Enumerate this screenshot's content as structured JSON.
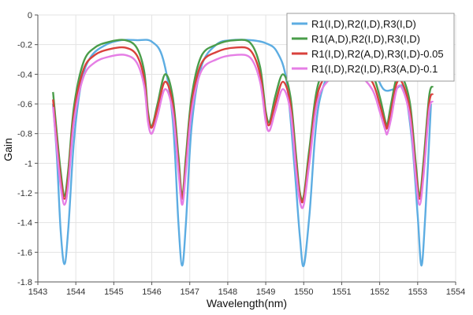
{
  "chart_data": {
    "type": "line",
    "title": "",
    "xlabel": "Wavelength(nm)",
    "ylabel": "Gain",
    "xlim": [
      1543,
      1554
    ],
    "ylim": [
      -1.8,
      0
    ],
    "xticks": [
      1543,
      1544,
      1545,
      1546,
      1547,
      1548,
      1549,
      1550,
      1551,
      1552,
      1553,
      1554
    ],
    "yticks": [
      0,
      -0.2,
      -0.4,
      -0.6,
      -0.8,
      -1,
      -1.2,
      -1.4,
      -1.6,
      -1.8
    ],
    "grid": true,
    "legend_position": "top-right",
    "series": [
      {
        "name": "R1(I,D),R2(I,D),R3(I,D)",
        "color": "#5dade2",
        "x": [
          1543.4,
          1543.5,
          1543.6,
          1543.7,
          1543.8,
          1543.95,
          1544.15,
          1544.4,
          1544.8,
          1545.2,
          1545.6,
          1546.0,
          1546.3,
          1546.55,
          1546.7,
          1546.8,
          1546.9,
          1547.05,
          1547.3,
          1547.7,
          1548.1,
          1548.6,
          1549.0,
          1549.3,
          1549.55,
          1549.75,
          1549.9,
          1550.0,
          1550.15,
          1550.4,
          1550.9,
          1551.4,
          1551.8,
          1552.1,
          1552.4,
          1552.65,
          1552.85,
          1553.0,
          1553.1,
          1553.2,
          1553.35
        ],
        "y": [
          -0.6,
          -0.95,
          -1.45,
          -1.68,
          -1.45,
          -0.85,
          -0.45,
          -0.28,
          -0.2,
          -0.17,
          -0.17,
          -0.18,
          -0.3,
          -0.7,
          -1.4,
          -1.69,
          -1.4,
          -0.75,
          -0.35,
          -0.2,
          -0.17,
          -0.17,
          -0.19,
          -0.25,
          -0.45,
          -1.0,
          -1.5,
          -1.69,
          -1.35,
          -0.6,
          -0.3,
          -0.25,
          -0.35,
          -0.5,
          -0.5,
          -0.5,
          -0.85,
          -1.35,
          -1.69,
          -1.35,
          -0.6
        ]
      },
      {
        "name": "R1(A,D),R2(I,D),R3(I,D)",
        "color": "#4a9d4a",
        "x": [
          1543.4,
          1543.5,
          1543.6,
          1543.7,
          1543.8,
          1543.95,
          1544.2,
          1544.5,
          1544.9,
          1545.3,
          1545.6,
          1545.8,
          1545.9,
          1546.0,
          1546.15,
          1546.35,
          1546.55,
          1546.7,
          1546.8,
          1546.9,
          1547.05,
          1547.3,
          1547.7,
          1548.2,
          1548.6,
          1548.85,
          1549.0,
          1549.1,
          1549.25,
          1549.45,
          1549.65,
          1549.8,
          1549.9,
          1550.0,
          1550.15,
          1550.4,
          1550.9,
          1551.4,
          1551.8,
          1552.0,
          1552.15,
          1552.2,
          1552.3,
          1552.45,
          1552.6,
          1552.8,
          1552.95,
          1553.05,
          1553.15,
          1553.3,
          1553.4
        ],
        "y": [
          -0.52,
          -0.8,
          -1.05,
          -1.22,
          -1.05,
          -0.62,
          -0.32,
          -0.22,
          -0.18,
          -0.17,
          -0.22,
          -0.38,
          -0.65,
          -0.75,
          -0.6,
          -0.4,
          -0.55,
          -0.95,
          -1.22,
          -0.95,
          -0.55,
          -0.28,
          -0.2,
          -0.17,
          -0.19,
          -0.35,
          -0.65,
          -0.72,
          -0.55,
          -0.4,
          -0.55,
          -0.95,
          -1.2,
          -1.22,
          -0.9,
          -0.45,
          -0.3,
          -0.3,
          -0.4,
          -0.55,
          -0.72,
          -0.74,
          -0.6,
          -0.42,
          -0.42,
          -0.6,
          -1.0,
          -1.22,
          -1.0,
          -0.55,
          -0.48
        ]
      },
      {
        "name": "R1(I,D),R2(A,D),R3(I,D)-0.05",
        "color": "#d9413c",
        "x": [
          1543.4,
          1543.5,
          1543.6,
          1543.7,
          1543.8,
          1543.95,
          1544.2,
          1544.5,
          1544.9,
          1545.3,
          1545.6,
          1545.8,
          1545.9,
          1546.0,
          1546.15,
          1546.35,
          1546.55,
          1546.7,
          1546.8,
          1546.9,
          1547.05,
          1547.3,
          1547.7,
          1548.2,
          1548.6,
          1548.85,
          1549.0,
          1549.1,
          1549.25,
          1549.45,
          1549.65,
          1549.8,
          1549.9,
          1550.0,
          1550.15,
          1550.4,
          1550.9,
          1551.4,
          1551.8,
          1552.0,
          1552.15,
          1552.2,
          1552.3,
          1552.45,
          1552.6,
          1552.8,
          1552.95,
          1553.05,
          1553.15,
          1553.3,
          1553.4
        ],
        "y": [
          -0.57,
          -0.85,
          -1.1,
          -1.24,
          -1.1,
          -0.67,
          -0.37,
          -0.27,
          -0.23,
          -0.22,
          -0.27,
          -0.43,
          -0.68,
          -0.76,
          -0.63,
          -0.45,
          -0.6,
          -1.0,
          -1.24,
          -1.0,
          -0.6,
          -0.33,
          -0.25,
          -0.22,
          -0.24,
          -0.4,
          -0.68,
          -0.74,
          -0.6,
          -0.45,
          -0.6,
          -1.0,
          -1.22,
          -1.24,
          -0.95,
          -0.5,
          -0.35,
          -0.35,
          -0.45,
          -0.6,
          -0.74,
          -0.76,
          -0.65,
          -0.46,
          -0.46,
          -0.65,
          -1.05,
          -1.24,
          -1.05,
          -0.6,
          -0.53
        ]
      },
      {
        "name": "R1(I,D),R2(I,D),R3(A,D)-0.1",
        "color": "#e57ee5",
        "x": [
          1543.4,
          1543.5,
          1543.6,
          1543.7,
          1543.8,
          1543.95,
          1544.2,
          1544.5,
          1544.9,
          1545.3,
          1545.6,
          1545.8,
          1545.9,
          1546.0,
          1546.15,
          1546.35,
          1546.55,
          1546.7,
          1546.8,
          1546.9,
          1547.05,
          1547.3,
          1547.7,
          1548.2,
          1548.6,
          1548.85,
          1549.0,
          1549.1,
          1549.25,
          1549.45,
          1549.65,
          1549.8,
          1549.9,
          1550.0,
          1550.15,
          1550.4,
          1550.9,
          1551.4,
          1551.8,
          1552.0,
          1552.15,
          1552.2,
          1552.3,
          1552.45,
          1552.6,
          1552.8,
          1552.95,
          1553.05,
          1553.15,
          1553.3,
          1553.4
        ],
        "y": [
          -0.62,
          -0.9,
          -1.15,
          -1.28,
          -1.15,
          -0.72,
          -0.42,
          -0.32,
          -0.28,
          -0.27,
          -0.32,
          -0.48,
          -0.72,
          -0.8,
          -0.68,
          -0.5,
          -0.65,
          -1.05,
          -1.28,
          -1.05,
          -0.65,
          -0.38,
          -0.3,
          -0.27,
          -0.29,
          -0.45,
          -0.72,
          -0.78,
          -0.65,
          -0.5,
          -0.65,
          -1.05,
          -1.26,
          -1.28,
          -1.0,
          -0.55,
          -0.4,
          -0.4,
          -0.5,
          -0.65,
          -0.78,
          -0.8,
          -0.7,
          -0.5,
          -0.5,
          -0.7,
          -1.1,
          -1.28,
          -1.1,
          -0.65,
          -0.58
        ]
      }
    ]
  }
}
